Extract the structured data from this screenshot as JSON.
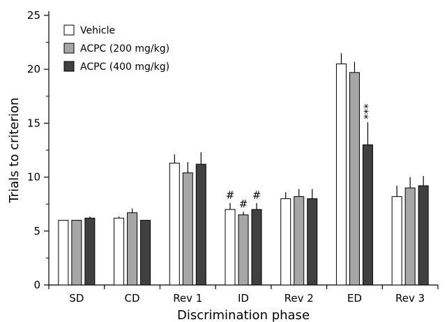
{
  "chart_data": {
    "type": "bar",
    "xlabel": "Discrimination phase",
    "ylabel": "Trials to criterion",
    "ylim": [
      0,
      25
    ],
    "yticks": [
      0,
      5,
      10,
      15,
      20,
      25
    ],
    "grid": false,
    "legend_position": "top-left",
    "categories": [
      "SD",
      "CD",
      "Rev 1",
      "ID",
      "Rev 2",
      "ED",
      "Rev 3"
    ],
    "series": [
      {
        "name": "Vehicle",
        "color": "#ffffff",
        "values": [
          6.0,
          6.2,
          11.3,
          7.0,
          8.0,
          20.5,
          8.2
        ],
        "errors": [
          0.0,
          0.15,
          0.8,
          0.6,
          0.6,
          1.0,
          1.0
        ]
      },
      {
        "name": "ACPC (200 mg/kg)",
        "color": "#a6a6a6",
        "values": [
          6.0,
          6.7,
          10.4,
          6.5,
          8.2,
          19.7,
          9.0
        ],
        "errors": [
          0.0,
          0.4,
          1.0,
          0.3,
          0.7,
          1.0,
          1.0
        ]
      },
      {
        "name": "ACPC (400 mg/kg)",
        "color": "#404040",
        "values": [
          6.2,
          6.0,
          11.2,
          7.0,
          8.0,
          13.0,
          9.2
        ],
        "errors": [
          0.15,
          0.0,
          1.1,
          0.6,
          0.9,
          2.1,
          0.9
        ]
      }
    ],
    "annotations": [
      {
        "category": "ID",
        "series": 0,
        "text": "#"
      },
      {
        "category": "ID",
        "series": 1,
        "text": "#"
      },
      {
        "category": "ID",
        "series": 2,
        "text": "#"
      },
      {
        "category": "ED",
        "series": 2,
        "text": "***"
      }
    ]
  }
}
